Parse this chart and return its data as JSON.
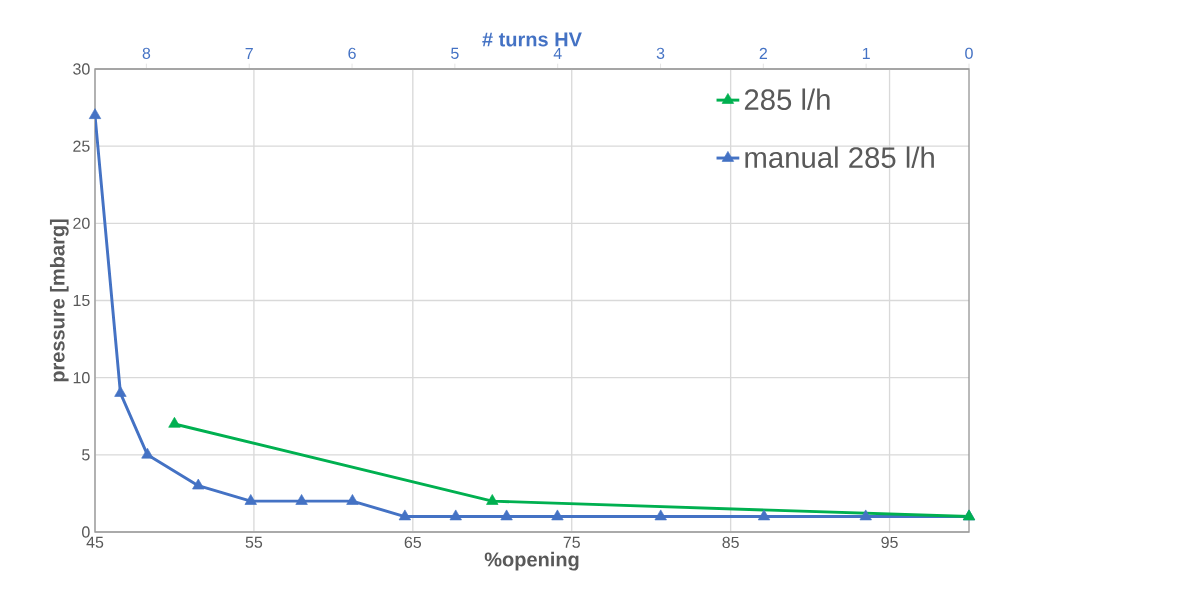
{
  "chart_data": {
    "type": "line",
    "xlabel": "%opening",
    "ylabel": "pressure [mbarg]",
    "x2label": "# turns HV",
    "xlim": [
      45,
      100
    ],
    "xticks": [
      45,
      55,
      65,
      75,
      85,
      95
    ],
    "ylim": [
      0,
      30
    ],
    "yticks": [
      0,
      5,
      10,
      15,
      20,
      25,
      30
    ],
    "x2lim": [
      8.5,
      0
    ],
    "x2ticks": [
      8,
      7,
      6,
      5,
      4,
      3,
      2,
      1,
      0
    ],
    "grid": true,
    "legend": "top right",
    "marker": "triangle",
    "line_style": "solid",
    "series": [
      {
        "name": "285 l/h",
        "color": "#00b050",
        "x": [
          50,
          70,
          100
        ],
        "values": [
          7,
          2,
          1
        ]
      },
      {
        "name": "manual 285 l/h",
        "color": "#4472c4",
        "x": [
          45,
          46.6,
          48.3,
          51.5,
          54.8,
          58,
          61.2,
          64.5,
          67.7,
          70.9,
          74.1,
          80.6,
          87.1,
          93.5,
          100
        ],
        "values": [
          27,
          9,
          5,
          3,
          2,
          2,
          2,
          1,
          1,
          1,
          1,
          1,
          1,
          1,
          1
        ]
      }
    ]
  }
}
